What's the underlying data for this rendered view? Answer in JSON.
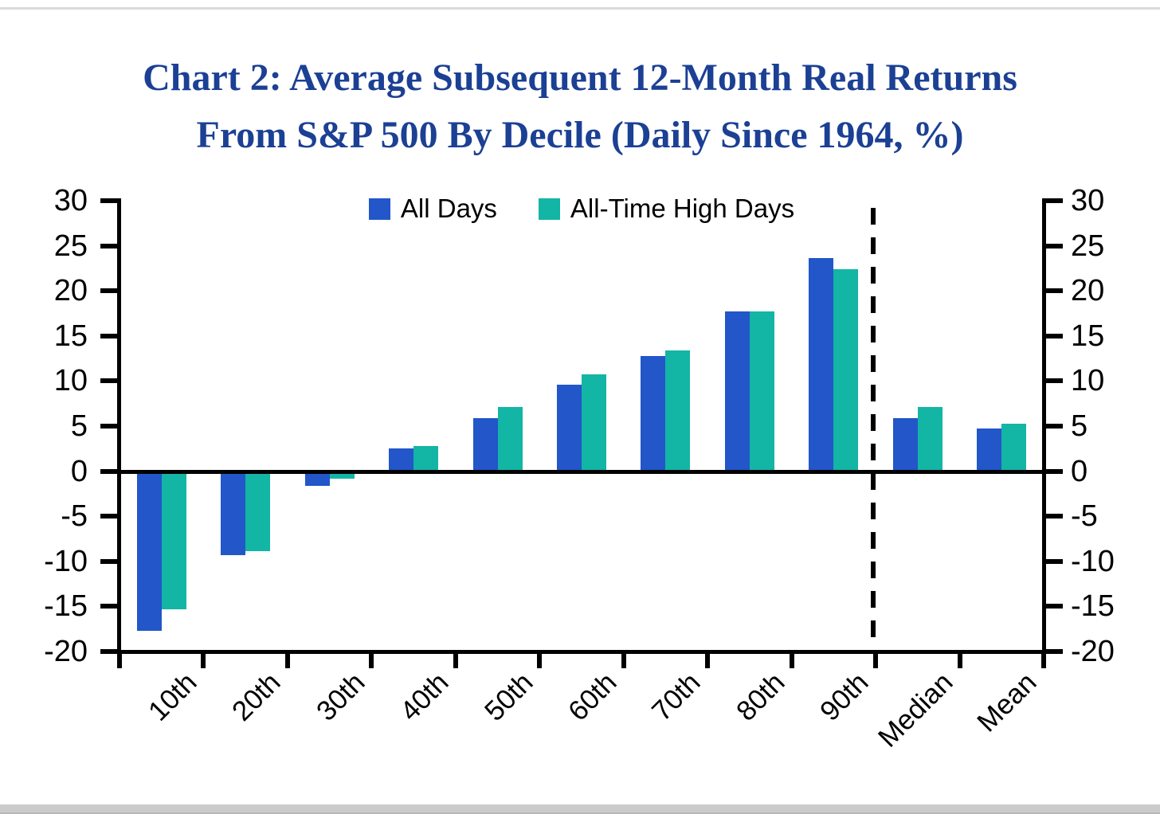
{
  "page": {
    "background": "#ffffff",
    "top_divider_color": "#d9d9d9",
    "bottom_divider_color": "#cbcbcb"
  },
  "title": {
    "line1": "Chart 2: Average Subsequent 12-Month Real Returns",
    "line2": "From S&P 500 By Decile (Daily Since 1964, %)",
    "color": "#1b4094"
  },
  "chart_data": {
    "type": "bar",
    "title": "Chart 2: Average Subsequent 12-Month Real Returns From S&P 500 By Decile (Daily Since 1964, %)",
    "categories": [
      "10th",
      "20th",
      "30th",
      "40th",
      "50th",
      "60th",
      "70th",
      "80th",
      "90th",
      "Median",
      "Mean"
    ],
    "series": [
      {
        "name": "All Days",
        "color": "#2256c9",
        "values": [
          -17.7,
          -9.3,
          -1.6,
          2.5,
          5.9,
          9.6,
          12.8,
          17.7,
          23.6,
          5.9,
          4.7
        ]
      },
      {
        "name": "All-Time High Days",
        "color": "#13b5a5",
        "values": [
          -15.3,
          -8.9,
          -0.8,
          2.8,
          7.1,
          10.7,
          13.4,
          17.7,
          22.4,
          7.1,
          5.3
        ]
      }
    ],
    "xlabel": "",
    "ylabel": "",
    "ylim": [
      -20,
      30
    ],
    "yticks": [
      30,
      25,
      20,
      15,
      10,
      5,
      0,
      -5,
      -10,
      -15,
      -20
    ],
    "dual_y_axis": true,
    "grid": false,
    "legend_position": "top-center",
    "separator": {
      "type": "dashed-vertical-line",
      "after_category": "90th"
    },
    "axis_color": "#000000",
    "x_tick_label_rotation_deg": 45
  }
}
